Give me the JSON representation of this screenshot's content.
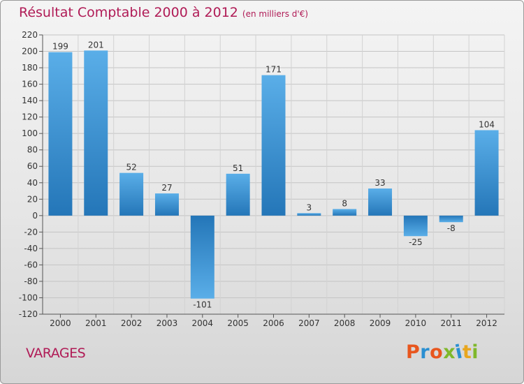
{
  "page": {
    "title": "Résultat Comptable 2000 à 2012",
    "subtitle": "(en milliers d'€)",
    "commune": "VARAGES",
    "logo": {
      "text": "Proxiti",
      "colors": [
        "#e8561e",
        "#2a8fd1",
        "#e8561e",
        "#7fb82b",
        "#2a8fd1",
        "#e8a61e",
        "#7fb82b"
      ]
    }
  },
  "chart_data": {
    "type": "bar",
    "title": "Résultat Comptable 2000 à 2012",
    "subtitle": "(en milliers d'€)",
    "categories": [
      "2000",
      "2001",
      "2002",
      "2003",
      "2004",
      "2005",
      "2006",
      "2007",
      "2008",
      "2009",
      "2010",
      "2011",
      "2012"
    ],
    "values": [
      199,
      201,
      52,
      27,
      -101,
      51,
      171,
      3,
      8,
      33,
      -25,
      -8,
      104
    ],
    "value_labels": [
      "199",
      "201",
      "52",
      "27",
      "-101",
      "51",
      "171",
      "3",
      "8",
      "33",
      "-25",
      "-8",
      "104"
    ],
    "ylim": [
      -120,
      220
    ],
    "yticks": [
      -120,
      -100,
      -80,
      -60,
      -40,
      -20,
      0,
      20,
      40,
      60,
      80,
      100,
      120,
      140,
      160,
      180,
      200,
      220
    ],
    "grid": true,
    "legend": "none",
    "bar_color": "#3f95d8"
  }
}
